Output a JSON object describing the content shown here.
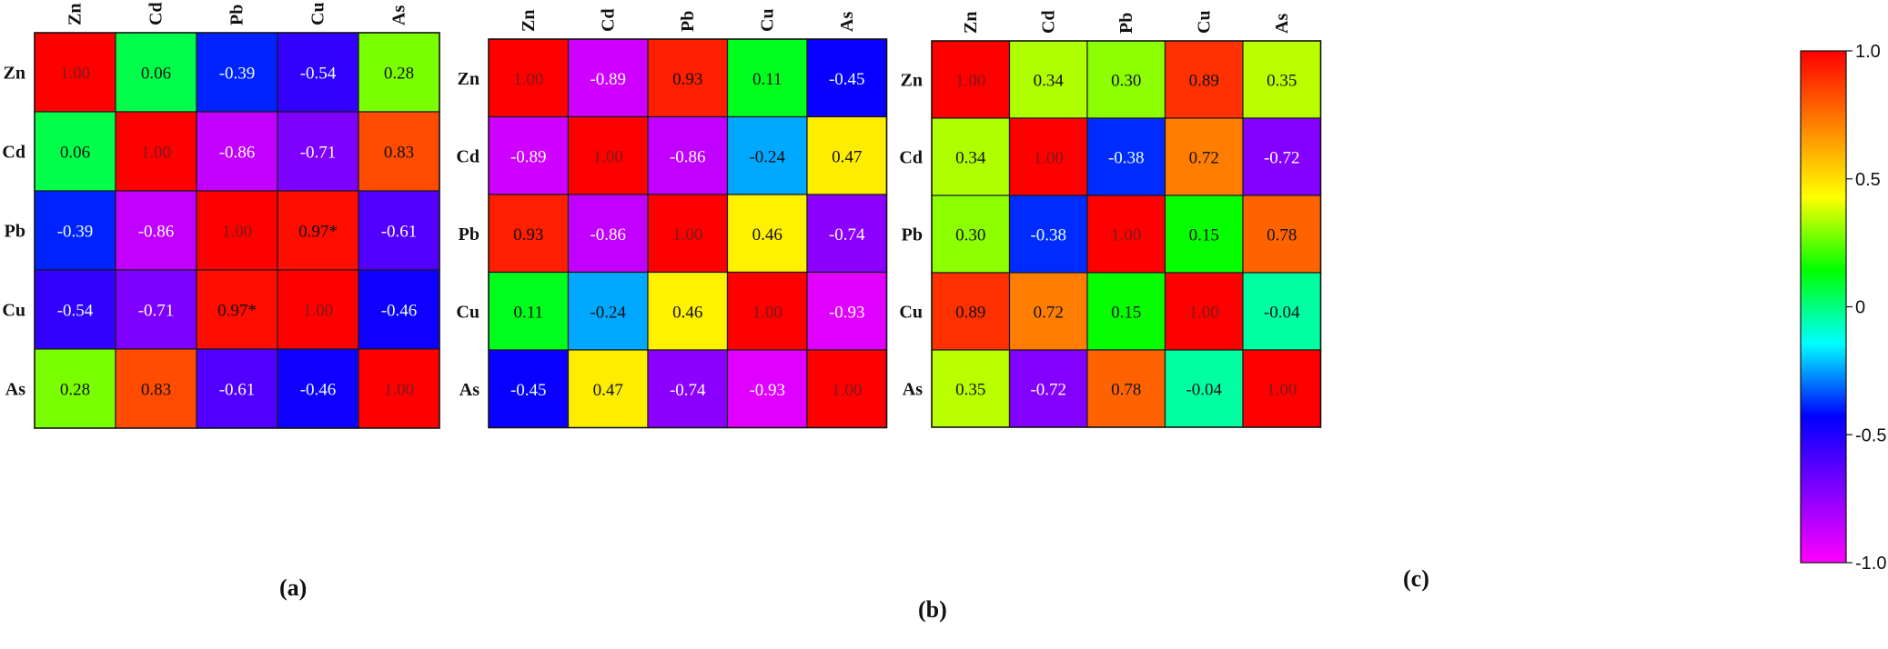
{
  "chart_data": [
    {
      "type": "heatmap",
      "panel_label": "(a)",
      "row_labels": [
        "Zn",
        "Cd",
        "Pb",
        "Cu",
        "As"
      ],
      "col_labels": [
        "Zn",
        "Cd",
        "Pb",
        "Cu",
        "As"
      ],
      "values": [
        [
          1.0,
          0.06,
          -0.39,
          -0.54,
          0.28
        ],
        [
          0.06,
          1.0,
          -0.86,
          -0.71,
          0.83
        ],
        [
          -0.39,
          -0.86,
          1.0,
          0.97,
          -0.61
        ],
        [
          -0.54,
          -0.71,
          0.97,
          1.0,
          -0.46
        ],
        [
          0.28,
          0.83,
          -0.61,
          -0.46,
          1.0
        ]
      ],
      "cell_text": [
        [
          "1.00",
          "0.06",
          "-0.39",
          "-0.54",
          "0.28"
        ],
        [
          "0.06",
          "1.00",
          "-0.86",
          "-0.71",
          "0.83"
        ],
        [
          "-0.39",
          "-0.86",
          "1.00",
          "0.97*",
          "-0.61"
        ],
        [
          "-0.54",
          "-0.71",
          "0.97*",
          "1.00",
          "-0.46"
        ],
        [
          "0.28",
          "0.83",
          "-0.61",
          "-0.46",
          "1.00"
        ]
      ]
    },
    {
      "type": "heatmap",
      "panel_label": "(b)",
      "row_labels": [
        "Zn",
        "Cd",
        "Pb",
        "Cu",
        "As"
      ],
      "col_labels": [
        "Zn",
        "Cd",
        "Pb",
        "Cu",
        "As"
      ],
      "values": [
        [
          1.0,
          -0.89,
          0.93,
          0.11,
          -0.45
        ],
        [
          -0.89,
          1.0,
          -0.86,
          -0.24,
          0.47
        ],
        [
          0.93,
          -0.86,
          1.0,
          0.46,
          -0.74
        ],
        [
          0.11,
          -0.24,
          0.46,
          1.0,
          -0.93
        ],
        [
          -0.45,
          0.47,
          -0.74,
          -0.93,
          1.0
        ]
      ],
      "cell_text": [
        [
          "1.00",
          "-0.89",
          "0.93",
          "0.11",
          "-0.45"
        ],
        [
          "-0.89",
          "1.00",
          "-0.86",
          "-0.24",
          "0.47"
        ],
        [
          "0.93",
          "-0.86",
          "1.00",
          "0.46",
          "-0.74"
        ],
        [
          "0.11",
          "-0.24",
          "0.46",
          "1.00",
          "-0.93"
        ],
        [
          "-0.45",
          "0.47",
          "-0.74",
          "-0.93",
          "1.00"
        ]
      ]
    },
    {
      "type": "heatmap",
      "panel_label": "(c)",
      "row_labels": [
        "Zn",
        "Cd",
        "Pb",
        "Cu",
        "As"
      ],
      "col_labels": [
        "Zn",
        "Cd",
        "Pb",
        "Cu",
        "As"
      ],
      "values": [
        [
          1.0,
          0.34,
          0.3,
          0.89,
          0.35
        ],
        [
          0.34,
          1.0,
          -0.38,
          0.72,
          -0.72
        ],
        [
          0.3,
          -0.38,
          1.0,
          0.15,
          0.78
        ],
        [
          0.89,
          0.72,
          0.15,
          1.0,
          -0.04
        ],
        [
          0.35,
          -0.72,
          0.78,
          -0.04,
          1.0
        ]
      ],
      "cell_text": [
        [
          "1.00",
          "0.34",
          "0.30",
          "0.89",
          "0.35"
        ],
        [
          "0.34",
          "1.00",
          "-0.38",
          "0.72",
          "-0.72"
        ],
        [
          "0.30",
          "-0.38",
          "1.00",
          "0.15",
          "0.78"
        ],
        [
          "0.89",
          "0.72",
          "0.15",
          "1.00",
          "-0.04"
        ],
        [
          "0.35",
          "-0.72",
          "0.78",
          "-0.04",
          "1.00"
        ]
      ]
    }
  ],
  "colorbar": {
    "range": [
      -1.0,
      1.0
    ],
    "tick_values": [
      1.0,
      0.5,
      0,
      -0.5,
      -1.0
    ],
    "tick_labels": [
      "1.0",
      "0.5",
      "0",
      "-0.5",
      "-1.0"
    ],
    "colors": [
      "#ff00ff",
      "#8000ff",
      "#0000ff",
      "#00ffff",
      "#00ff00",
      "#ffff00",
      "#ff8000",
      "#ff0000"
    ]
  }
}
